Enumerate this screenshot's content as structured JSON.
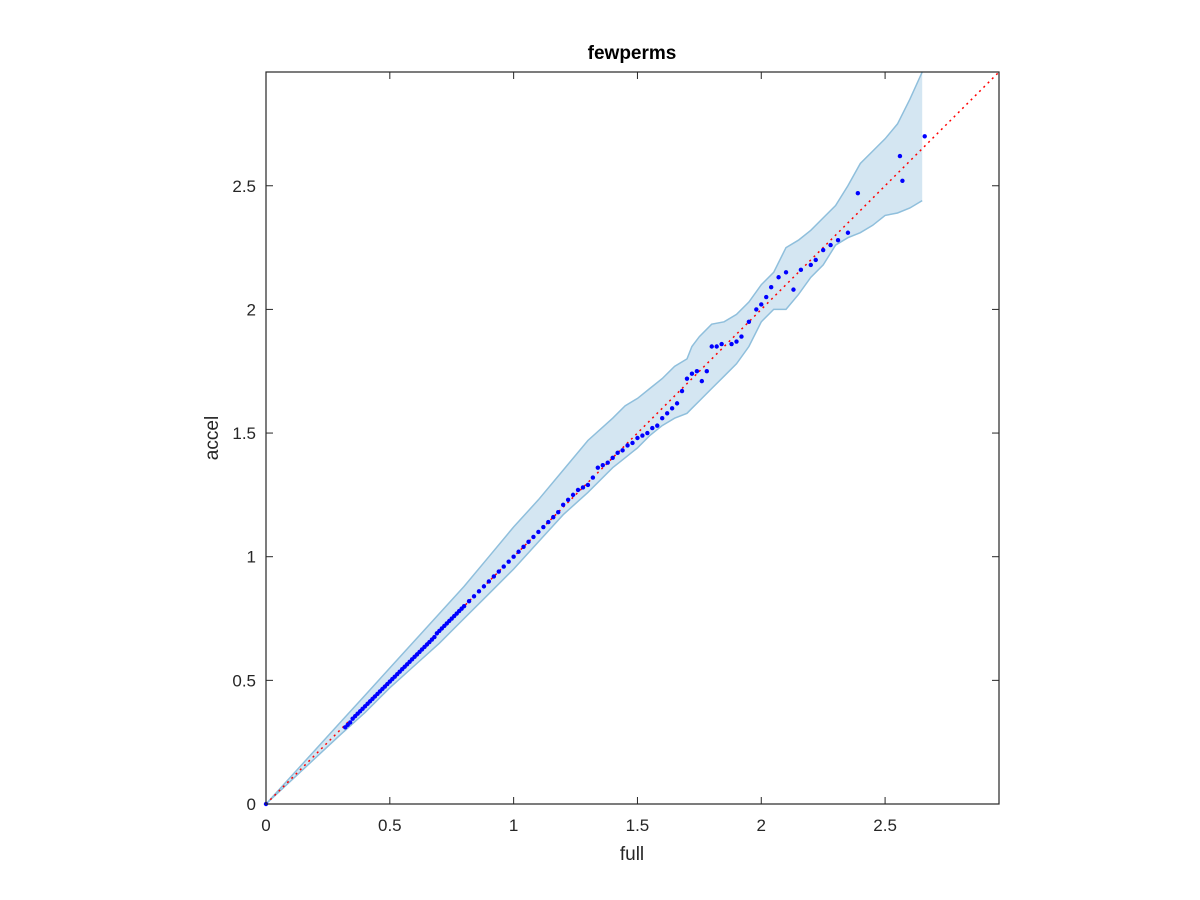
{
  "chart_data": {
    "type": "scatter",
    "title": "fewperms",
    "xlabel": "full",
    "ylabel": "accel",
    "xlim": [
      0,
      2.96
    ],
    "ylim": [
      0,
      2.96
    ],
    "xticks": [
      0,
      0.5,
      1,
      1.5,
      2,
      2.5
    ],
    "yticks": [
      0,
      0.5,
      1,
      1.5,
      2,
      2.5
    ],
    "xtick_labels": [
      "0",
      "0.5",
      "1",
      "1.5",
      "2",
      "2.5"
    ],
    "ytick_labels": [
      "0",
      "0.5",
      "1",
      "1.5",
      "2",
      "2.5"
    ],
    "grid": false,
    "box": true,
    "colors": {
      "points": "#0000ff",
      "reference_line": "#ff0000",
      "band_fill": "#d4e6f2",
      "band_edge": "#8fbfdc",
      "axes": "#262626"
    },
    "reference_line": {
      "style": "dotted",
      "x": [
        0,
        2.96
      ],
      "y": [
        0,
        2.96
      ]
    },
    "confidence_band": {
      "x": [
        0,
        0.3,
        0.4,
        0.5,
        0.6,
        0.7,
        0.8,
        0.9,
        1.0,
        1.1,
        1.2,
        1.3,
        1.4,
        1.45,
        1.5,
        1.55,
        1.6,
        1.65,
        1.7,
        1.72,
        1.75,
        1.8,
        1.85,
        1.9,
        1.95,
        2.0,
        2.05,
        2.1,
        2.15,
        2.2,
        2.25,
        2.3,
        2.35,
        2.4,
        2.45,
        2.5,
        2.55,
        2.6,
        2.65
      ],
      "upper": [
        0,
        0.33,
        0.44,
        0.55,
        0.66,
        0.77,
        0.88,
        1.0,
        1.12,
        1.23,
        1.35,
        1.47,
        1.56,
        1.61,
        1.64,
        1.68,
        1.72,
        1.77,
        1.8,
        1.85,
        1.89,
        1.94,
        1.95,
        1.98,
        2.03,
        2.1,
        2.15,
        2.25,
        2.28,
        2.32,
        2.37,
        2.42,
        2.5,
        2.59,
        2.64,
        2.69,
        2.75,
        2.85,
        2.96
      ],
      "lower": [
        0,
        0.28,
        0.37,
        0.47,
        0.56,
        0.65,
        0.75,
        0.85,
        0.95,
        1.06,
        1.17,
        1.26,
        1.36,
        1.4,
        1.44,
        1.49,
        1.53,
        1.56,
        1.58,
        1.6,
        1.63,
        1.68,
        1.73,
        1.78,
        1.85,
        1.95,
        2.0,
        2.0,
        2.06,
        2.13,
        2.18,
        2.26,
        2.29,
        2.31,
        2.34,
        2.38,
        2.39,
        2.41,
        2.44
      ]
    },
    "series": [
      {
        "name": "",
        "x": [
          0,
          0.32,
          0.33,
          0.34,
          0.35,
          0.36,
          0.37,
          0.38,
          0.39,
          0.4,
          0.41,
          0.42,
          0.43,
          0.44,
          0.45,
          0.46,
          0.47,
          0.48,
          0.49,
          0.5,
          0.51,
          0.52,
          0.53,
          0.54,
          0.55,
          0.56,
          0.57,
          0.58,
          0.59,
          0.6,
          0.61,
          0.62,
          0.63,
          0.64,
          0.65,
          0.66,
          0.67,
          0.68,
          0.69,
          0.7,
          0.71,
          0.72,
          0.73,
          0.74,
          0.75,
          0.76,
          0.77,
          0.78,
          0.79,
          0.8,
          0.82,
          0.84,
          0.86,
          0.88,
          0.9,
          0.92,
          0.94,
          0.96,
          0.98,
          1.0,
          1.02,
          1.04,
          1.06,
          1.08,
          1.1,
          1.12,
          1.14,
          1.16,
          1.18,
          1.2,
          1.22,
          1.24,
          1.26,
          1.28,
          1.3,
          1.32,
          1.34,
          1.36,
          1.38,
          1.4,
          1.42,
          1.44,
          1.46,
          1.48,
          1.5,
          1.52,
          1.54,
          1.56,
          1.58,
          1.6,
          1.62,
          1.64,
          1.66,
          1.68,
          1.7,
          1.72,
          1.74,
          1.76,
          1.78,
          1.8,
          1.82,
          1.84,
          1.88,
          1.9,
          1.92,
          1.95,
          1.98,
          2.0,
          2.02,
          2.04,
          2.07,
          2.1,
          2.13,
          2.16,
          2.2,
          2.22,
          2.25,
          2.28,
          2.31,
          2.35,
          2.39,
          2.56,
          2.57,
          2.66
        ],
        "y": [
          0,
          0.31,
          0.32,
          0.33,
          0.345,
          0.355,
          0.365,
          0.375,
          0.385,
          0.395,
          0.405,
          0.415,
          0.425,
          0.435,
          0.445,
          0.455,
          0.465,
          0.475,
          0.485,
          0.495,
          0.505,
          0.515,
          0.525,
          0.535,
          0.545,
          0.555,
          0.565,
          0.575,
          0.585,
          0.595,
          0.605,
          0.615,
          0.625,
          0.635,
          0.645,
          0.655,
          0.665,
          0.675,
          0.69,
          0.7,
          0.71,
          0.72,
          0.73,
          0.74,
          0.75,
          0.76,
          0.77,
          0.78,
          0.79,
          0.8,
          0.82,
          0.84,
          0.86,
          0.88,
          0.9,
          0.92,
          0.94,
          0.96,
          0.98,
          1.0,
          1.02,
          1.04,
          1.06,
          1.08,
          1.1,
          1.12,
          1.14,
          1.16,
          1.18,
          1.21,
          1.23,
          1.25,
          1.27,
          1.28,
          1.29,
          1.32,
          1.36,
          1.37,
          1.38,
          1.4,
          1.42,
          1.43,
          1.45,
          1.46,
          1.48,
          1.49,
          1.5,
          1.52,
          1.53,
          1.56,
          1.58,
          1.6,
          1.62,
          1.67,
          1.72,
          1.74,
          1.75,
          1.71,
          1.75,
          1.85,
          1.85,
          1.86,
          1.86,
          1.87,
          1.89,
          1.95,
          2.0,
          2.02,
          2.05,
          2.09,
          2.13,
          2.15,
          2.08,
          2.16,
          2.18,
          2.2,
          2.24,
          2.26,
          2.28,
          2.31,
          2.47,
          2.62,
          2.52,
          2.7
        ]
      }
    ]
  }
}
